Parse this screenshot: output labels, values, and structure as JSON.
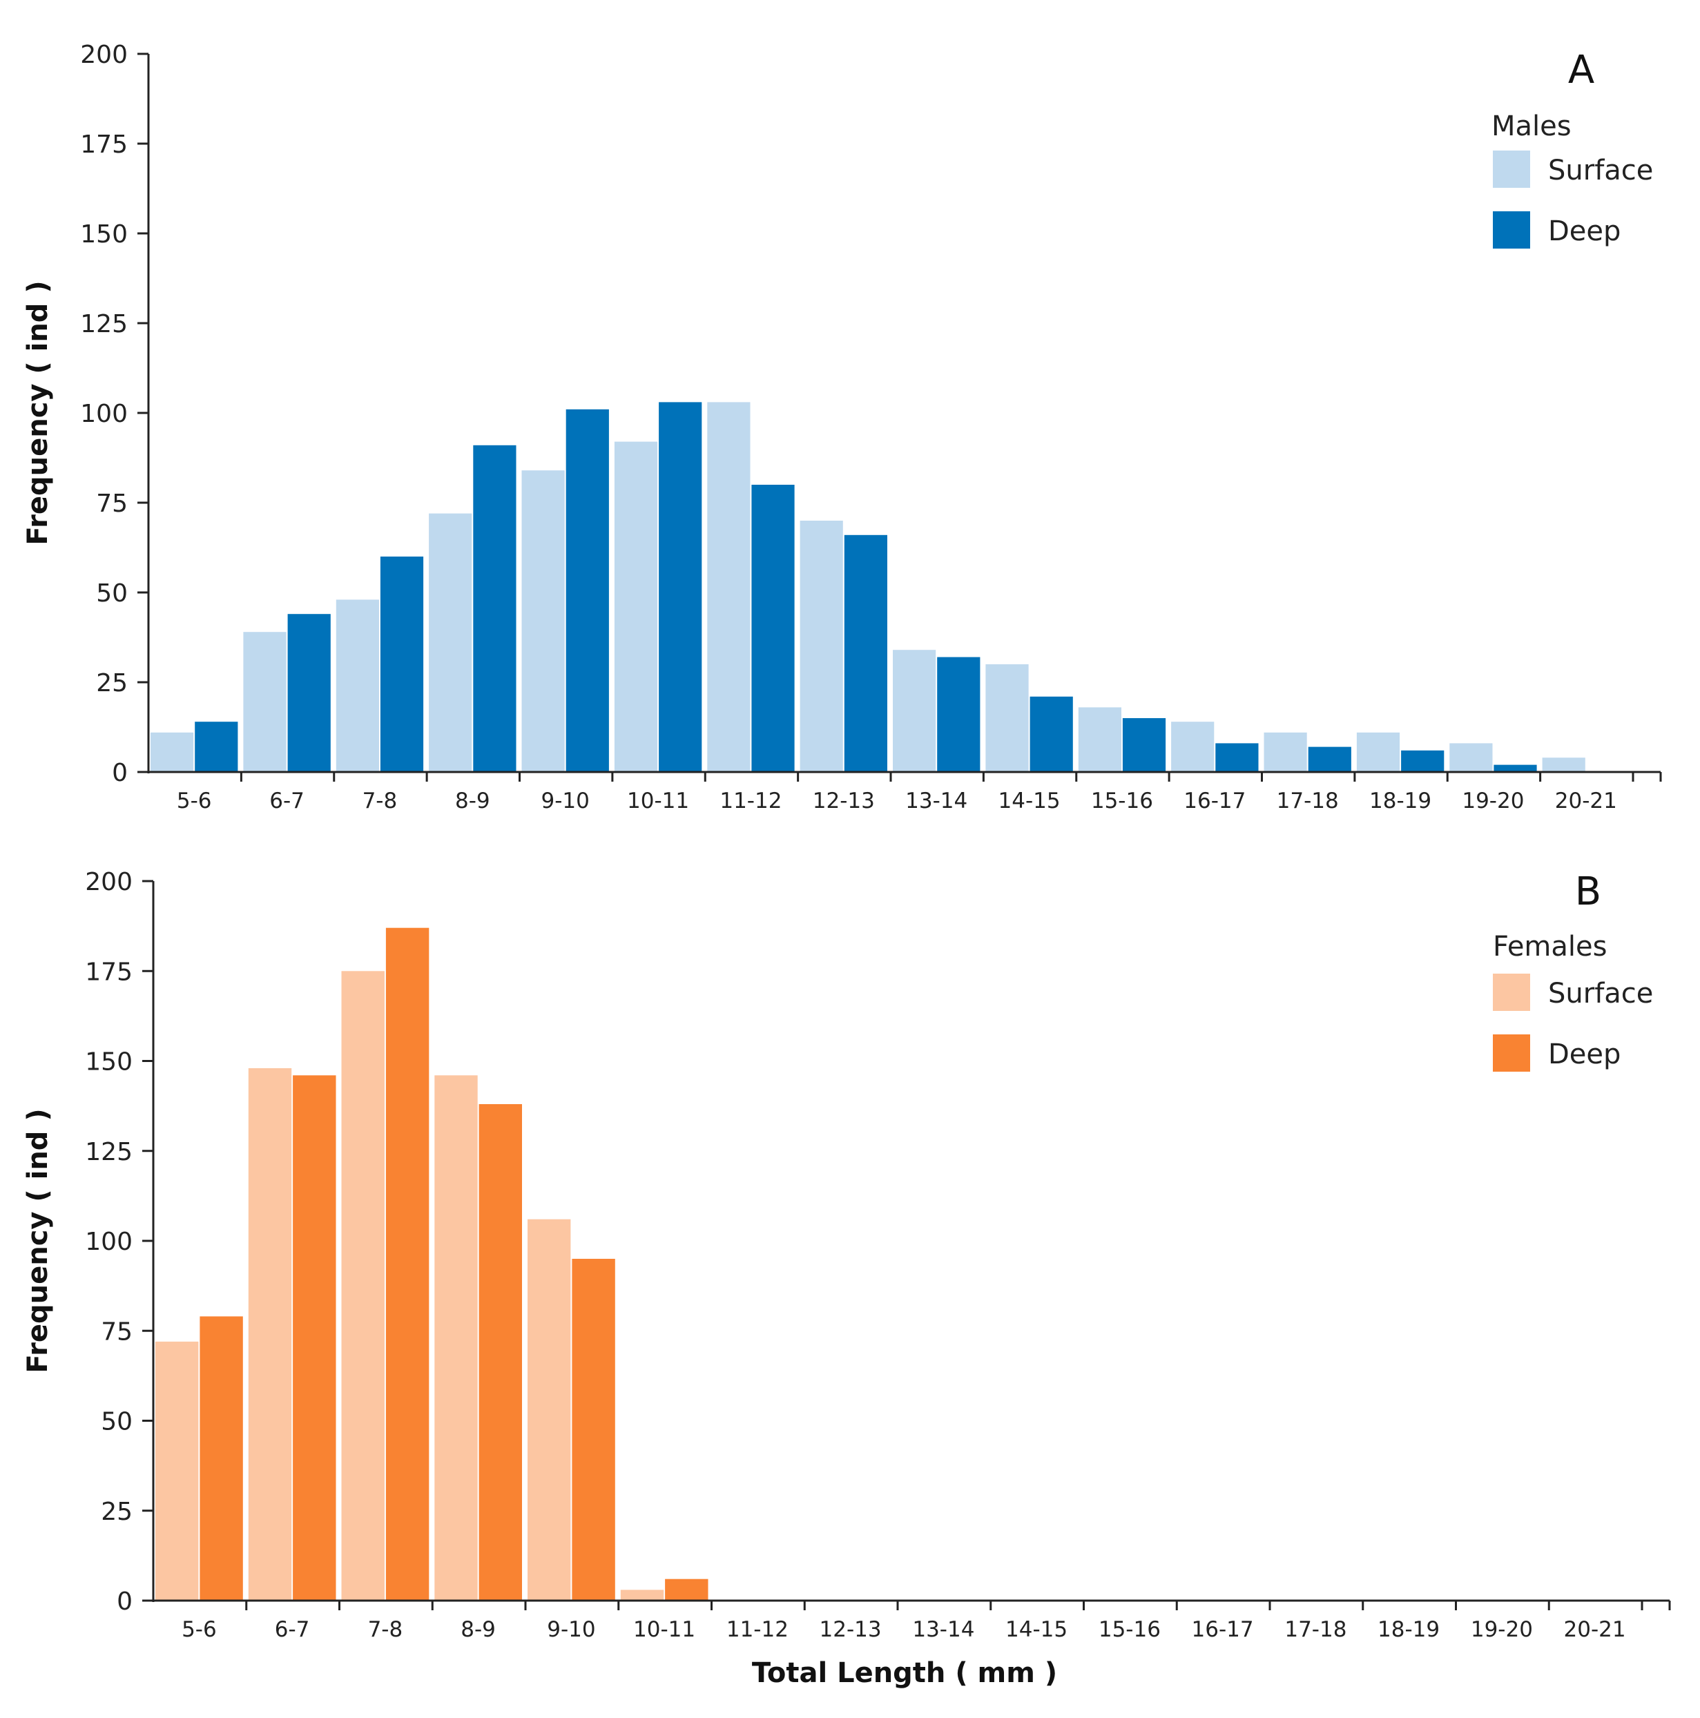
{
  "chart_data": [
    {
      "type": "bar",
      "panel_label": "A",
      "legend_title": "Males",
      "ylabel": "Frequency ( ind )",
      "xlabel": "",
      "ylim": [
        0,
        200
      ],
      "yticks": [
        0,
        25,
        50,
        75,
        100,
        125,
        150,
        175,
        200
      ],
      "categories": [
        "5-6",
        "6-7",
        "7-8",
        "8-9",
        "9-10",
        "10-11",
        "11-12",
        "12-13",
        "13-14",
        "14-15",
        "15-16",
        "16-17",
        "17-18",
        "18-19",
        "19-20",
        "20-21"
      ],
      "series": [
        {
          "name": "Surface",
          "color": "#BFD9EE",
          "values": [
            11,
            39,
            48,
            72,
            84,
            92,
            103,
            70,
            34,
            30,
            18,
            14,
            11,
            11,
            8,
            4
          ]
        },
        {
          "name": "Deep",
          "color": "#0072B9",
          "values": [
            14,
            44,
            60,
            91,
            101,
            103,
            80,
            66,
            32,
            21,
            15,
            8,
            7,
            6,
            2,
            null
          ]
        }
      ],
      "legend_position": "top-right"
    },
    {
      "type": "bar",
      "panel_label": "B",
      "legend_title": "Females",
      "ylabel": "Frequency ( ind )",
      "xlabel": "Total Length ( mm )",
      "ylim": [
        0,
        200
      ],
      "yticks": [
        0,
        25,
        50,
        75,
        100,
        125,
        150,
        175,
        200
      ],
      "categories": [
        "5-6",
        "6-7",
        "7-8",
        "8-9",
        "9-10",
        "10-11",
        "11-12",
        "12-13",
        "13-14",
        "14-15",
        "15-16",
        "16-17",
        "17-18",
        "18-19",
        "19-20",
        "20-21"
      ],
      "series": [
        {
          "name": "Surface",
          "color": "#FCC6A2",
          "values": [
            72,
            148,
            175,
            146,
            106,
            3,
            0,
            0,
            0,
            0,
            0,
            0,
            0,
            0,
            0,
            0
          ]
        },
        {
          "name": "Deep",
          "color": "#F98332",
          "values": [
            79,
            146,
            187,
            138,
            95,
            6,
            0,
            0,
            0,
            0,
            0,
            0,
            0,
            0,
            0,
            0
          ]
        }
      ],
      "legend_position": "top-right"
    }
  ]
}
